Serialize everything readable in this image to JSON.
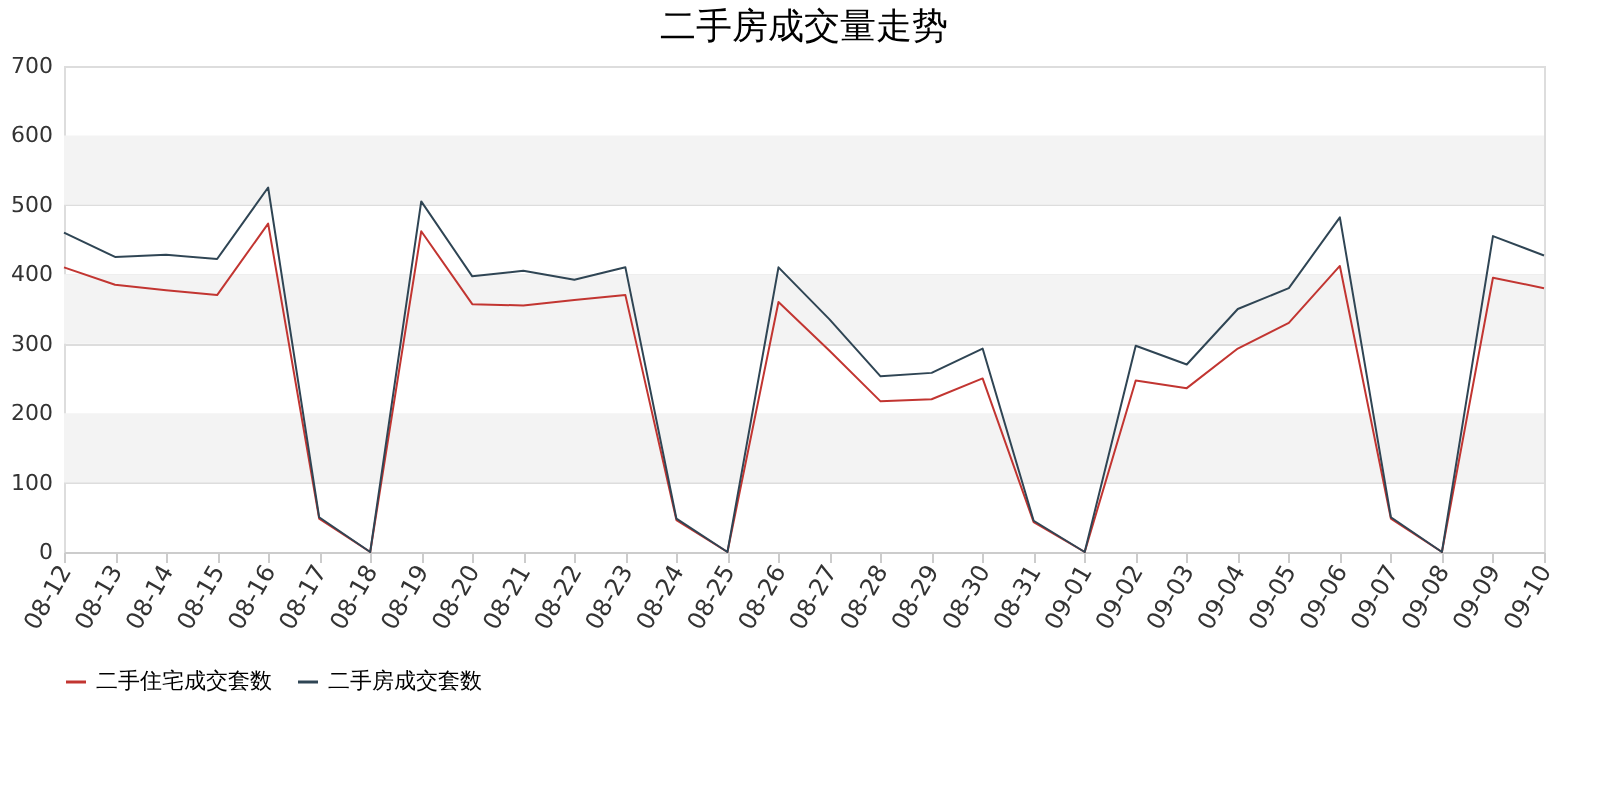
{
  "chart_data": {
    "type": "line",
    "title": "二手房成交量走势",
    "categories": [
      "08-12",
      "08-13",
      "08-14",
      "08-15",
      "08-16",
      "08-17",
      "08-18",
      "08-19",
      "08-20",
      "08-21",
      "08-22",
      "08-23",
      "08-24",
      "08-25",
      "08-26",
      "08-27",
      "08-28",
      "08-29",
      "08-30",
      "08-31",
      "09-01",
      "09-02",
      "09-03",
      "09-04",
      "09-05",
      "09-06",
      "09-07",
      "09-08",
      "09-09",
      "09-10"
    ],
    "series": [
      {
        "name": "二手住宅成交套数",
        "color": "#c23531",
        "values": [
          410,
          385,
          377,
          370,
          473,
          48,
          0,
          462,
          357,
          355,
          363,
          370,
          46,
          0,
          360,
          290,
          217,
          220,
          250,
          43,
          0,
          247,
          236,
          293,
          330,
          412,
          48,
          0,
          395,
          380
        ]
      },
      {
        "name": "二手房成交套数",
        "color": "#2f4554",
        "values": [
          460,
          425,
          428,
          422,
          525,
          50,
          0,
          505,
          397,
          405,
          392,
          410,
          48,
          0,
          410,
          335,
          253,
          258,
          293,
          45,
          0,
          297,
          270,
          350,
          380,
          482,
          50,
          0,
          455,
          427
        ]
      }
    ],
    "ylim": [
      0,
      700
    ],
    "yticks": [
      0,
      100,
      200,
      300,
      400,
      500,
      600,
      700
    ],
    "bands": [
      {
        "axis": "y",
        "from": 100,
        "to": 200,
        "color": "#f3f3f3"
      },
      {
        "axis": "y",
        "from": 300,
        "to": 400,
        "color": "#f3f3f3"
      },
      {
        "axis": "y",
        "from": 500,
        "to": 600,
        "color": "#f3f3f3"
      }
    ],
    "grid": "y",
    "legend": "bottom",
    "marker": "none",
    "line_style": "solid"
  }
}
